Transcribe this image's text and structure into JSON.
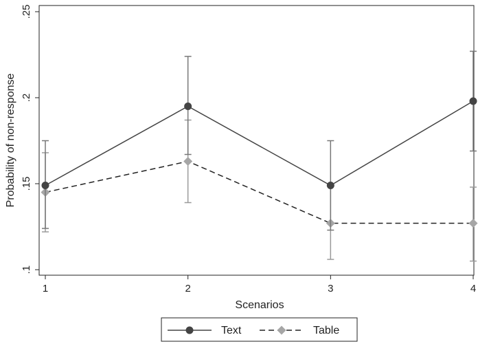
{
  "chart_data": {
    "type": "line",
    "xlabel": "Scenarios",
    "ylabel": "Probability of non-response",
    "x": [
      1,
      2,
      3,
      4
    ],
    "x_tick_labels": [
      "1",
      "2",
      "3",
      "4"
    ],
    "y_tick_values": [
      0.1,
      0.15,
      0.2,
      0.25
    ],
    "y_tick_labels": [
      ".1",
      ".15",
      ".2",
      ".25"
    ],
    "xlim": [
      1,
      4
    ],
    "ylim": [
      0.1,
      0.25
    ],
    "grid": false,
    "legend_position": "bottom",
    "series": [
      {
        "name": "Text",
        "values": [
          0.149,
          0.195,
          0.149,
          0.198
        ],
        "ci_low": [
          0.124,
          0.167,
          0.123,
          0.169
        ],
        "ci_high": [
          0.175,
          0.224,
          0.175,
          0.227
        ],
        "color": "#444444",
        "error_color": "#777777",
        "line_style": "solid",
        "marker": "circle"
      },
      {
        "name": "Table",
        "values": [
          0.145,
          0.163,
          0.127,
          0.127
        ],
        "ci_low": [
          0.122,
          0.139,
          0.106,
          0.105
        ],
        "ci_high": [
          0.168,
          0.187,
          0.149,
          0.148
        ],
        "color": "#222222",
        "error_color": "#9a9a9a",
        "marker_color": "#a6a6a6",
        "line_style": "dashed",
        "marker": "diamond"
      }
    ]
  }
}
